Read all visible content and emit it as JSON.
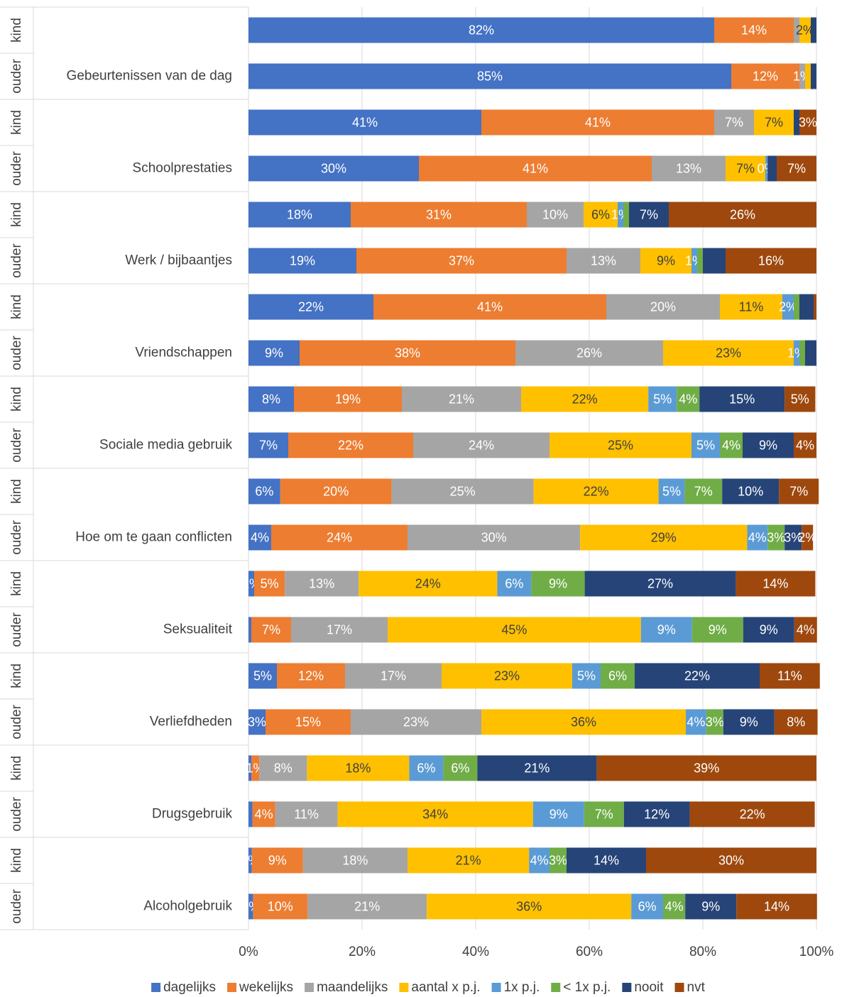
{
  "chart_data": {
    "type": "stacked-bar-horizontal",
    "categories": [
      "kind",
      "ouder",
      "kind",
      "ouder",
      "kind",
      "ouder",
      "kind",
      "ouder",
      "kind",
      "ouder",
      "kind",
      "ouder",
      "kind",
      "ouder",
      "kind",
      "ouder",
      "kind",
      "ouder",
      "kind",
      "ouder"
    ],
    "groups": [
      "Gebeurtenissen van de dag",
      "Schoolprestaties",
      "Werk / bijbaantjes",
      "Vriendschappen",
      "Sociale media gebruik",
      "Hoe om te gaan conflicten",
      "Seksualiteit",
      "Verliefdheden",
      "Drugsgebruik",
      "Alcoholgebruik"
    ],
    "xlim": [
      0,
      100
    ],
    "xticks": [
      {
        "value": 0,
        "label": "0%"
      },
      {
        "value": 20,
        "label": "20%"
      },
      {
        "value": 40,
        "label": "40%"
      },
      {
        "value": 60,
        "label": "60%"
      },
      {
        "value": 80,
        "label": "80%"
      },
      {
        "value": 100,
        "label": "100%"
      }
    ],
    "grid": true,
    "legend": "bottom",
    "series": [
      {
        "name": "dagelijks",
        "color": "#4472c4",
        "values": [
          82,
          85,
          41,
          30,
          18,
          19,
          22,
          9,
          8,
          7,
          5.6,
          4,
          1,
          0.5,
          5,
          3,
          0.5,
          0.7,
          0.6,
          0.8
        ],
        "value_labels": [
          "82%",
          "85%",
          "41%",
          "30%",
          "18%",
          "19%",
          "22%",
          "9%",
          "8%",
          "7%",
          "6%",
          "4%",
          "1%",
          null,
          "5%",
          "3%",
          null,
          null,
          "1%",
          "1%"
        ]
      },
      {
        "name": "wekelijks",
        "color": "#ed7d31",
        "values": [
          14,
          12,
          41,
          41,
          31,
          37,
          41,
          38,
          19,
          22,
          19.6,
          24,
          5.4,
          7,
          12,
          15,
          1.4,
          4,
          9,
          9.6
        ],
        "value_labels": [
          "14%",
          "12%",
          "41%",
          "41%",
          "31%",
          "37%",
          "41%",
          "38%",
          "19%",
          "22%",
          "20%",
          "24%",
          "5%",
          "7%",
          "12%",
          "15%",
          "1%",
          "4%",
          "9%",
          "10%"
        ]
      },
      {
        "name": "maandelijks",
        "color": "#a5a5a5",
        "values": [
          1,
          1,
          7,
          13,
          10,
          13,
          20,
          26,
          21,
          24,
          25,
          30.4,
          13,
          17,
          17,
          23,
          8.4,
          11,
          18.4,
          21
        ],
        "value_labels": [
          null,
          "1%",
          "7%",
          "13%",
          "10%",
          "13%",
          "20%",
          "26%",
          "21%",
          "24%",
          "25%",
          "30%",
          "13%",
          "17%",
          "17%",
          "23%",
          "8%",
          "11%",
          "18%",
          "21%"
        ]
      },
      {
        "name": "aantal x p.j.",
        "color": "#ffc000",
        "values": [
          2,
          1,
          7,
          7,
          6,
          9,
          11,
          23,
          22.4,
          25,
          22,
          29.4,
          24.4,
          44.6,
          23,
          36,
          18,
          34.4,
          21.4,
          36
        ],
        "value_labels": [
          "2%",
          null,
          "7%",
          "7%",
          "6%",
          "9%",
          "11%",
          "23%",
          "22%",
          "25%",
          "22%",
          "29%",
          "24%",
          "45%",
          "23%",
          "36%",
          "18%",
          "34%",
          "21%",
          "36%"
        ]
      },
      {
        "name": "1x p.j.",
        "color": "#5b9bd5",
        "values": [
          0,
          0,
          0,
          0.4,
          1,
          1,
          2,
          1,
          5,
          5,
          4.6,
          3.6,
          6,
          9,
          5,
          3.6,
          6,
          9,
          3.6,
          5.6
        ],
        "value_labels": [
          null,
          null,
          null,
          "0%",
          "1%",
          "1%",
          "2%",
          "1%",
          "5%",
          "5%",
          "5%",
          "4%",
          "6%",
          "9%",
          "5%",
          "4%",
          "6%",
          "9%",
          "4%",
          "6%"
        ]
      },
      {
        "name": "< 1x p.j.",
        "color": "#70ad47",
        "values": [
          0,
          0,
          0,
          0,
          1,
          1,
          1,
          1,
          4,
          4,
          6.6,
          3,
          9.4,
          9,
          6,
          3,
          6,
          7,
          3,
          3.9
        ],
        "value_labels": [
          null,
          null,
          null,
          null,
          null,
          null,
          null,
          null,
          "4%",
          "4%",
          "7%",
          "3%",
          "9%",
          "9%",
          "6%",
          "3%",
          "6%",
          "7%",
          "3%",
          "4%"
        ]
      },
      {
        "name": "nooit",
        "color": "#264478",
        "values": [
          1,
          1,
          1,
          1.6,
          7,
          4,
          2.5,
          2,
          15,
          9,
          10,
          3,
          26.6,
          9,
          22,
          9,
          21,
          11.6,
          14,
          9
        ],
        "value_labels": [
          null,
          null,
          null,
          null,
          "7%",
          null,
          null,
          null,
          "15%",
          "9%",
          "10%",
          "3%",
          "27%",
          "9%",
          "22%",
          "9%",
          "21%",
          "12%",
          "14%",
          "9%"
        ]
      },
      {
        "name": "nvt",
        "color": "#9e480e",
        "values": [
          0,
          0,
          3,
          7,
          26,
          16,
          0.5,
          0,
          5.4,
          4,
          7,
          2,
          14,
          4,
          10.6,
          7.6,
          38.7,
          22,
          30,
          14.2
        ],
        "value_labels": [
          null,
          null,
          "3%",
          "7%",
          "26%",
          "16%",
          null,
          null,
          "5%",
          "4%",
          "7%",
          "2%",
          "14%",
          "4%",
          "11%",
          "8%",
          "39%",
          "22%",
          "30%",
          "14%"
        ]
      }
    ]
  }
}
